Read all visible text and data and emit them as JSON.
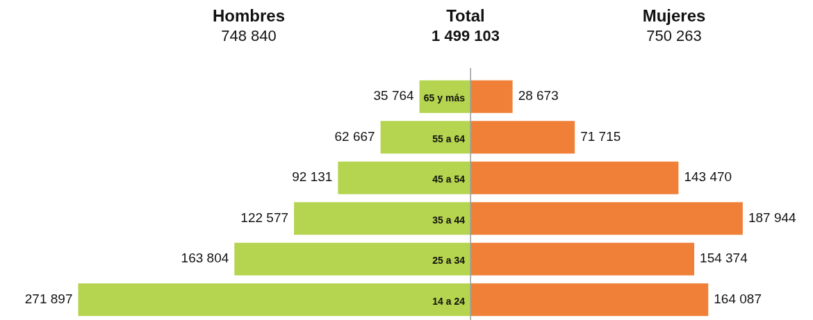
{
  "chart_data": [
    {
      "type": "bar",
      "orientation": "horizontal",
      "title": "Hombres",
      "subtitle": "748 840",
      "categories": [
        "65 y más",
        "55 a 64",
        "45 a 54",
        "35 a 44",
        "25 a 34",
        "14 a 24"
      ],
      "values": [
        35764,
        62667,
        92131,
        122577,
        163804,
        271897
      ],
      "color": "#b5d44f",
      "data_labels": true
    },
    {
      "type": "other",
      "title": "Total",
      "subtitle": "1 499 103"
    },
    {
      "type": "bar",
      "orientation": "horizontal",
      "title": "Mujeres",
      "subtitle": "750 263",
      "categories": [
        null,
        null,
        null,
        null,
        null,
        null
      ],
      "values": [
        28673,
        71715,
        143470,
        187944,
        154374,
        164087
      ],
      "color": "#f08038",
      "data_labels": true
    }
  ]
}
